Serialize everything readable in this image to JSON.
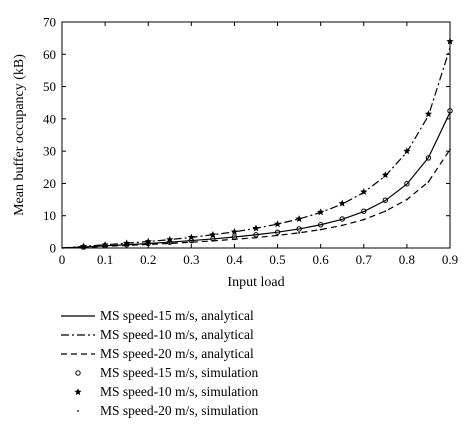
{
  "chart_data": {
    "type": "line",
    "xlabel": "Input load",
    "ylabel": "Mean buffer occupancy (kB)",
    "xlim": [
      0,
      0.9
    ],
    "ylim": [
      0,
      70
    ],
    "xticks": [
      0,
      0.1,
      0.2,
      0.3,
      0.4,
      0.5,
      0.6,
      0.7,
      0.8,
      0.9
    ],
    "yticks": [
      0,
      10,
      20,
      30,
      40,
      50,
      60,
      70
    ],
    "grid": false,
    "legend_placement": "below",
    "series": [
      {
        "name": "MS speed-15 m/s, analytical",
        "kind": "line",
        "dash": "solid",
        "color": "#000000",
        "x": [
          0,
          0.05,
          0.1,
          0.15,
          0.2,
          0.25,
          0.3,
          0.35,
          0.4,
          0.45,
          0.5,
          0.55,
          0.6,
          0.65,
          0.7,
          0.75,
          0.8,
          0.85,
          0.9
        ],
        "y": [
          0,
          0.3,
          0.7,
          1.0,
          1.4,
          1.8,
          2.3,
          2.8,
          3.4,
          4.1,
          4.9,
          5.9,
          7.2,
          8.9,
          11.3,
          14.7,
          19.8,
          28.0,
          42.0
        ]
      },
      {
        "name": "MS speed-10 m/s, analytical",
        "kind": "line",
        "dash": "dashdot",
        "color": "#000000",
        "x": [
          0,
          0.05,
          0.1,
          0.15,
          0.2,
          0.25,
          0.3,
          0.35,
          0.4,
          0.45,
          0.5,
          0.55,
          0.6,
          0.65,
          0.7,
          0.75,
          0.8,
          0.85,
          0.9
        ],
        "y": [
          0,
          0.5,
          1.0,
          1.5,
          2.0,
          2.6,
          3.3,
          4.1,
          5.0,
          6.1,
          7.4,
          9.0,
          11.0,
          13.6,
          17.2,
          22.3,
          29.7,
          41.0,
          62.0
        ]
      },
      {
        "name": "MS speed-20 m/s, analytical",
        "kind": "line",
        "dash": "dashed",
        "color": "#000000",
        "x": [
          0,
          0.05,
          0.1,
          0.15,
          0.2,
          0.25,
          0.3,
          0.35,
          0.4,
          0.45,
          0.5,
          0.55,
          0.6,
          0.65,
          0.7,
          0.75,
          0.8,
          0.85,
          0.9
        ],
        "y": [
          0,
          0.2,
          0.5,
          0.8,
          1.1,
          1.4,
          1.8,
          2.2,
          2.7,
          3.2,
          3.9,
          4.7,
          5.7,
          7.0,
          8.8,
          11.4,
          15.0,
          20.5,
          30.5
        ]
      },
      {
        "name": "MS speed-15 m/s, simulation",
        "kind": "marker",
        "marker": "circle",
        "color": "#000000",
        "x": [
          0.05,
          0.1,
          0.15,
          0.2,
          0.25,
          0.3,
          0.35,
          0.4,
          0.45,
          0.5,
          0.55,
          0.6,
          0.65,
          0.7,
          0.75,
          0.8,
          0.85,
          0.9
        ],
        "y": [
          0.3,
          0.7,
          1.0,
          1.4,
          1.8,
          2.3,
          2.8,
          3.4,
          4.1,
          4.9,
          5.9,
          7.2,
          9.0,
          11.4,
          14.8,
          19.9,
          27.9,
          42.5
        ]
      },
      {
        "name": "MS speed-10 m/s, simulation",
        "kind": "marker",
        "marker": "star",
        "color": "#000000",
        "x": [
          0.05,
          0.1,
          0.15,
          0.2,
          0.25,
          0.3,
          0.35,
          0.4,
          0.45,
          0.5,
          0.55,
          0.6,
          0.65,
          0.7,
          0.75,
          0.8,
          0.85,
          0.9
        ],
        "y": [
          0.5,
          1.0,
          1.5,
          2.0,
          2.6,
          3.3,
          4.1,
          5.0,
          6.1,
          7.4,
          9.0,
          11.1,
          13.8,
          17.4,
          22.6,
          30.0,
          41.5,
          64.0
        ]
      },
      {
        "name": "MS speed-20 m/s, simulation",
        "kind": "marker",
        "marker": "dot",
        "color": "#000000",
        "x": [
          0.05,
          0.1,
          0.15,
          0.2,
          0.25,
          0.3,
          0.35,
          0.4,
          0.45,
          0.5,
          0.55,
          0.6,
          0.65,
          0.7,
          0.75,
          0.8,
          0.85,
          0.9
        ],
        "y": [
          0.2,
          0.5,
          0.8,
          1.1,
          1.4,
          1.8,
          2.2,
          2.7,
          3.2,
          3.9,
          4.7,
          5.7,
          7.0,
          8.8,
          11.4,
          15.0,
          20.5,
          30.5
        ]
      }
    ]
  }
}
